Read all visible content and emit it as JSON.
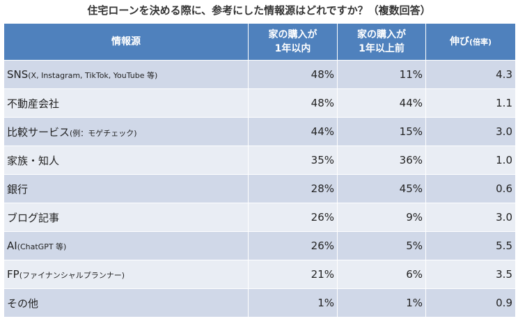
{
  "header": {
    "title": "住宅ローンを決める際に、参考にした情報源はどれですか？（複数回答）"
  },
  "table": {
    "columns": [
      {
        "main": "情報源"
      },
      {
        "main": "家の購入が",
        "line2": "1年以内"
      },
      {
        "main": "家の購入が",
        "line2": "1年以上前"
      },
      {
        "main": "伸び",
        "note": "(倍率)"
      }
    ],
    "rows": [
      {
        "name": "SNS",
        "note": "(X, Instagram, TikTok, YouTube 等)",
        "cells": [
          "48%",
          "11%",
          "4.3"
        ]
      },
      {
        "name": "不動産会社",
        "cells": [
          "48%",
          "44%",
          "1.1"
        ]
      },
      {
        "name": "比較サービス",
        "note": "(例：モゲチェック)",
        "cells": [
          "44%",
          "15%",
          "3.0"
        ]
      },
      {
        "name": "家族・知人",
        "cells": [
          "35%",
          "36%",
          "1.0"
        ]
      },
      {
        "name": "銀行",
        "cells": [
          "28%",
          "45%",
          "0.6"
        ]
      },
      {
        "name": "ブログ記事",
        "cells": [
          "26%",
          "9%",
          "3.0"
        ]
      },
      {
        "name": "AI",
        "note": "(ChatGPT 等)",
        "cells": [
          "26%",
          "5%",
          "5.5"
        ]
      },
      {
        "name": "FP",
        "note": "(ファイナンシャルプランナー)",
        "cells": [
          "21%",
          "6%",
          "3.5"
        ]
      },
      {
        "name": "その他",
        "cells": [
          "1%",
          "1%",
          "0.9"
        ]
      }
    ]
  }
}
